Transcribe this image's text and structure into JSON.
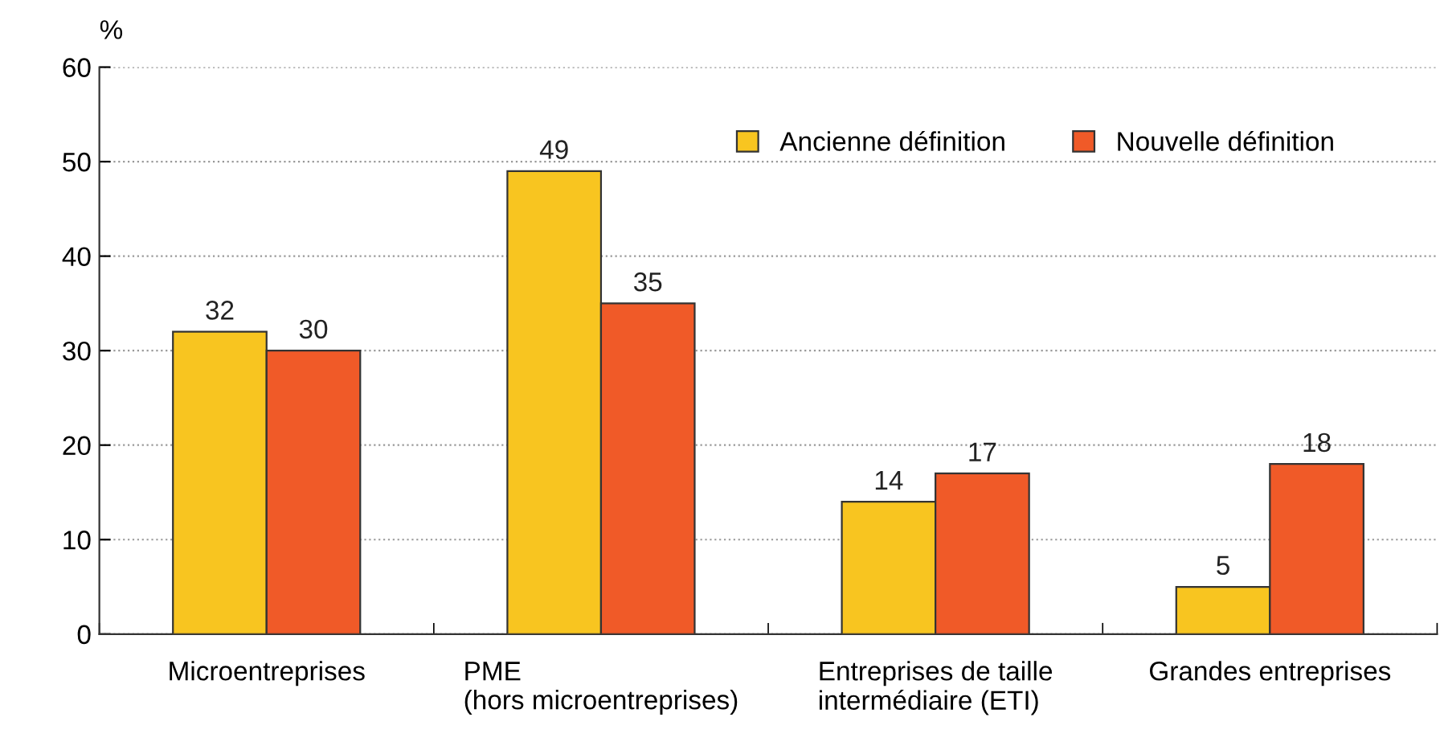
{
  "chart_data": {
    "type": "bar",
    "ylabel": "%",
    "categories": [
      "Microentreprises",
      "PME\n(hors microentreprises)",
      "Entreprises de taille\nintermédiaire (ETI)",
      "Grandes entreprises"
    ],
    "series": [
      {
        "name": "Ancienne définition",
        "color": "#f8c520",
        "values": [
          32,
          49,
          14,
          5
        ]
      },
      {
        "name": "Nouvelle définition",
        "color": "#f05a28",
        "values": [
          30,
          35,
          17,
          18
        ]
      }
    ],
    "ylim": [
      0,
      60
    ],
    "yticks": [
      0,
      10,
      20,
      30,
      40,
      50,
      60
    ],
    "grid": "y",
    "legend": "top right",
    "data_labels": true
  }
}
